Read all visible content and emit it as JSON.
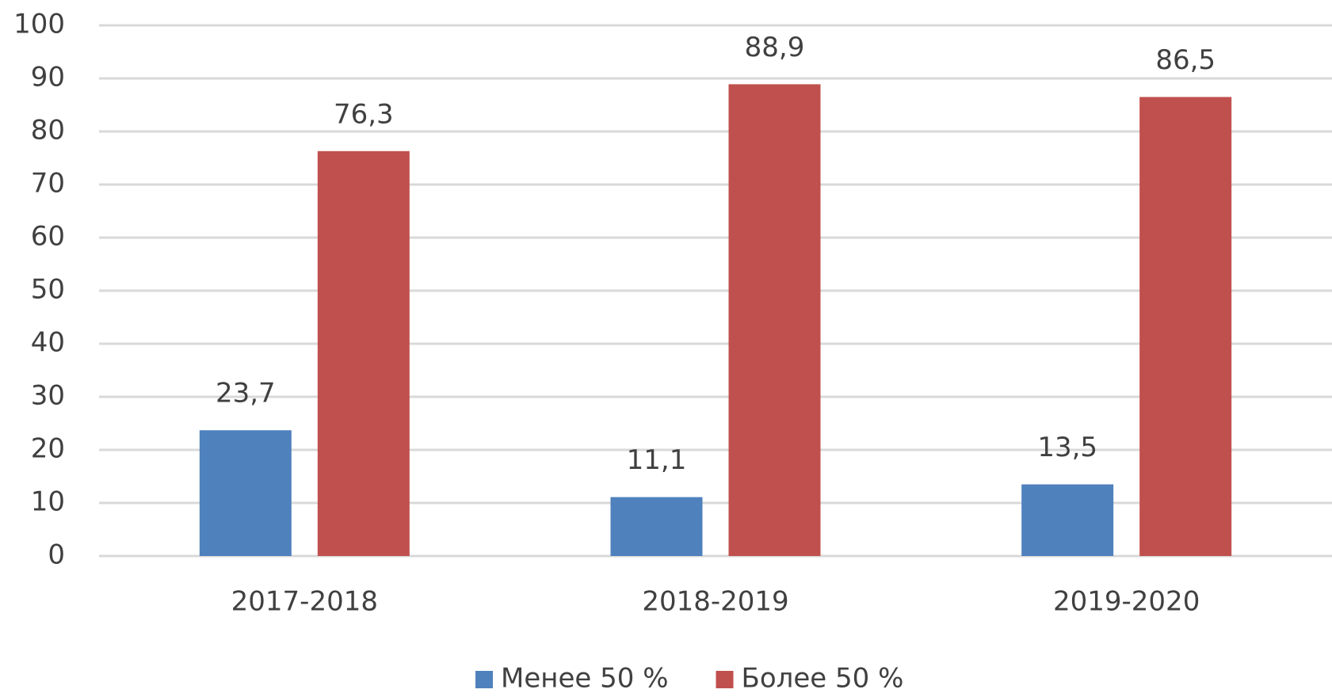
{
  "chart_data": {
    "type": "bar",
    "categories": [
      "2017-2018",
      "2018-2019",
      "2019-2020"
    ],
    "series": [
      {
        "name": "Менее 50 %",
        "color": "#4f81bd",
        "values": [
          23.7,
          11.1,
          13.5
        ],
        "value_labels": [
          "23,7",
          "11,1",
          "13,5"
        ]
      },
      {
        "name": "Более 50 %",
        "color": "#c0504d",
        "values": [
          76.3,
          88.9,
          86.5
        ],
        "value_labels": [
          "76,3",
          "88,9",
          "86,5"
        ]
      }
    ],
    "ylim": [
      0,
      100
    ],
    "yticks": [
      0,
      10,
      20,
      30,
      40,
      50,
      60,
      70,
      80,
      90,
      100
    ],
    "grid": true,
    "legend": "bottom"
  }
}
